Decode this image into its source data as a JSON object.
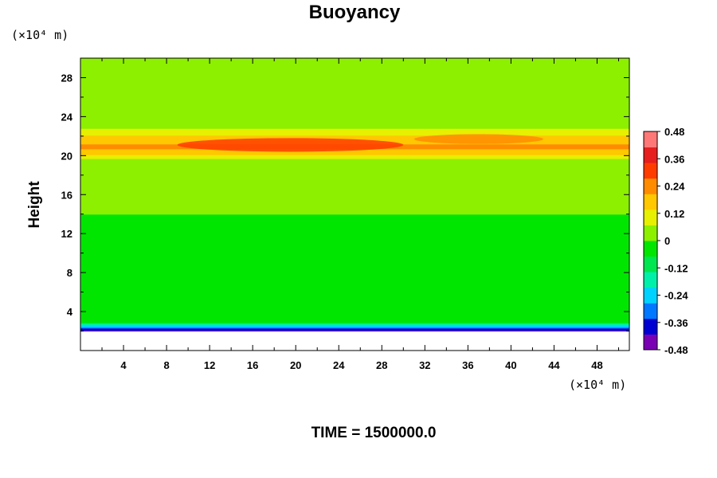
{
  "chart_data": {
    "type": "heatmap",
    "title": "Buoyancy",
    "xlabel": "",
    "ylabel": "Height",
    "x_unit": "(×10⁴ m)",
    "y_unit": "(×10⁴ m)",
    "xlim": [
      0,
      51
    ],
    "ylim": [
      0,
      30
    ],
    "x_ticks": [
      "4",
      "8",
      "12",
      "16",
      "20",
      "24",
      "28",
      "32",
      "36",
      "40",
      "44",
      "48"
    ],
    "y_ticks": [
      "4",
      "8",
      "12",
      "16",
      "20",
      "24",
      "28"
    ],
    "colorbar": {
      "min": -0.48,
      "max": 0.48,
      "tick_labels": [
        "0.48",
        "0.36",
        "0.24",
        "0.12",
        "0",
        "-0.12",
        "-0.24",
        "-0.36",
        "-0.48"
      ],
      "colors": [
        "#7a00b4",
        "#0000d2",
        "#0078ff",
        "#00d2ff",
        "#00f0aa",
        "#00e650",
        "#00e600",
        "#8cf000",
        "#e6f000",
        "#ffc800",
        "#ff8c00",
        "#ff3c00",
        "#e61e1e",
        "#ff7878"
      ]
    },
    "height_profile": {
      "z": [
        2.0,
        2.3,
        2.6,
        3.0,
        5.0,
        9.5,
        10.5,
        14,
        18,
        19.5,
        20.3,
        20.8,
        21.3,
        21.8,
        22.3,
        23,
        24,
        27,
        30
      ],
      "value": [
        -0.44,
        -0.34,
        -0.2,
        -0.04,
        -0.03,
        -0.03,
        -0.01,
        0.0,
        0.02,
        0.04,
        0.16,
        0.22,
        0.2,
        0.17,
        0.12,
        0.05,
        0.02,
        0.01,
        0.01
      ]
    },
    "features": [
      {
        "x": [
          9,
          30
        ],
        "z": [
          20.4,
          21.8
        ],
        "value": 0.3
      },
      {
        "x": [
          31,
          43
        ],
        "z": [
          21.2,
          22.2
        ],
        "value": 0.26
      }
    ],
    "footer": "TIME = 1500000.0"
  }
}
